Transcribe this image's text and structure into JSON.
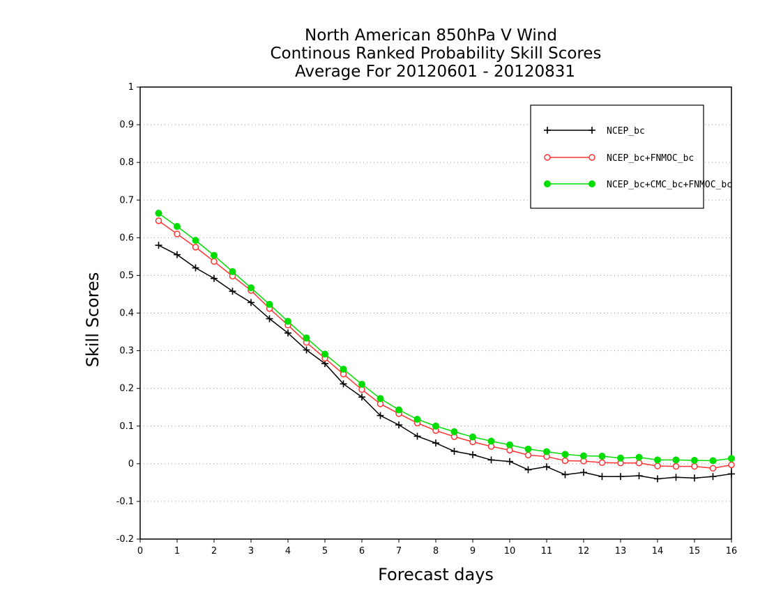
{
  "chart_data": {
    "type": "line",
    "title": [
      "North American 850hPa V Wind",
      "Continous Ranked Probability Skill Scores",
      "Average For 20120601 - 20120831"
    ],
    "xlabel": "Forecast days",
    "ylabel": "Skill Scores",
    "xlim": [
      0,
      16
    ],
    "ylim": [
      -0.2,
      1
    ],
    "xticks": [
      "0",
      "1",
      "2",
      "3",
      "4",
      "5",
      "6",
      "7",
      "8",
      "9",
      "10",
      "11",
      "12",
      "13",
      "14",
      "15",
      "16"
    ],
    "yticks": [
      "-0.2",
      "-0.1",
      "0",
      "0.1",
      "0.2",
      "0.3",
      "0.4",
      "0.5",
      "0.6",
      "0.7",
      "0.8",
      "0.9",
      "1"
    ],
    "grid": "horizontal dotted",
    "legend_position": "top-right",
    "x": [
      0.5,
      1,
      1.5,
      2,
      2.5,
      3,
      3.5,
      4,
      4.5,
      5,
      5.5,
      6,
      6.5,
      7,
      7.5,
      8,
      8.5,
      9,
      9.5,
      10,
      10.5,
      11,
      11.5,
      12,
      12.5,
      13,
      13.5,
      14,
      14.5,
      15,
      15.5,
      16
    ],
    "series": [
      {
        "name": "NCEP_bc",
        "color": "#000000",
        "marker": "plus",
        "values": [
          0.58,
          0.555,
          0.52,
          0.492,
          0.458,
          0.428,
          0.385,
          0.347,
          0.302,
          0.266,
          0.212,
          0.177,
          0.128,
          0.103,
          0.073,
          0.055,
          0.033,
          0.024,
          0.01,
          0.006,
          -0.016,
          -0.008,
          -0.029,
          -0.023,
          -0.034,
          -0.034,
          -0.032,
          -0.04,
          -0.036,
          -0.038,
          -0.034,
          -0.027
        ]
      },
      {
        "name": "NCEP_bc+FNMOC_bc",
        "color": "#ff3333",
        "marker": "open-circle",
        "values": [
          0.645,
          0.61,
          0.575,
          0.537,
          0.498,
          0.46,
          0.412,
          0.368,
          0.322,
          0.28,
          0.238,
          0.197,
          0.159,
          0.133,
          0.108,
          0.088,
          0.072,
          0.058,
          0.046,
          0.036,
          0.023,
          0.019,
          0.008,
          0.007,
          0.003,
          0.002,
          0.002,
          -0.006,
          -0.007,
          -0.007,
          -0.012,
          -0.003
        ]
      },
      {
        "name": "NCEP_bc+CMC_bc+FNMOC_bc",
        "color": "#00dd00",
        "marker": "filled-circle",
        "values": [
          0.665,
          0.63,
          0.593,
          0.553,
          0.51,
          0.467,
          0.423,
          0.378,
          0.334,
          0.291,
          0.251,
          0.211,
          0.173,
          0.143,
          0.118,
          0.1,
          0.085,
          0.071,
          0.06,
          0.05,
          0.039,
          0.032,
          0.025,
          0.021,
          0.02,
          0.015,
          0.017,
          0.01,
          0.01,
          0.009,
          0.008,
          0.014
        ]
      }
    ]
  }
}
